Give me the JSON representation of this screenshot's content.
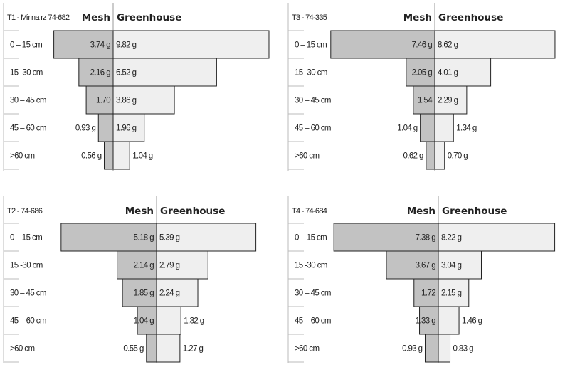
{
  "colors": {
    "mesh": "#c2c2c2",
    "greenhouse": "#efefef",
    "outline": "#222222"
  },
  "chart_data": [
    {
      "type": "bar",
      "orientation": "horizontal-butterfly",
      "title": "T1 - Mirina rz 74-682",
      "categories": [
        "0 – 15 cm",
        "15 -30 cm",
        "30 – 45 cm",
        "45 – 60 cm",
        ">60 cm"
      ],
      "series": [
        {
          "name": "Mesh",
          "values": [
            3.74,
            2.16,
            1.7,
            0.93,
            0.56
          ],
          "labels": [
            "3.74 g",
            "2.16 g",
            "1.70",
            "0.93 g",
            "0.56  g"
          ]
        },
        {
          "name": "Greenhouse",
          "values": [
            9.82,
            6.52,
            3.86,
            1.96,
            1.04
          ],
          "labels": [
            "9.82 g",
            "6.52 g",
            "3.86 g",
            "1.96 g",
            "1.04 g"
          ]
        }
      ]
    },
    {
      "type": "bar",
      "orientation": "horizontal-butterfly",
      "title": "T3 - 74-335",
      "categories": [
        "0 – 15 cm",
        "15 -30 cm",
        "30 – 45 cm",
        "45 – 60 cm",
        ">60 cm"
      ],
      "series": [
        {
          "name": "Mesh",
          "values": [
            7.46,
            2.05,
            1.54,
            1.04,
            0.62
          ],
          "labels": [
            "7.46 g",
            "2.05 g",
            "1.54",
            "1.04 g",
            "0.62 g"
          ]
        },
        {
          "name": "Greenhouse",
          "values": [
            8.62,
            4.01,
            2.29,
            1.34,
            0.7
          ],
          "labels": [
            "8.62 g",
            "4.01 g",
            "2.29 g",
            "1.34 g",
            "0.70 g"
          ]
        }
      ]
    },
    {
      "type": "bar",
      "orientation": "horizontal-butterfly",
      "title": "T2 - 74-686",
      "categories": [
        "0 – 15 cm",
        "15 -30 cm",
        "30 – 45 cm",
        "45 – 60 cm",
        ">60 cm"
      ],
      "series": [
        {
          "name": "Mesh",
          "values": [
            5.18,
            2.14,
            1.85,
            1.04,
            0.55
          ],
          "labels": [
            "5.18 g",
            "2.14 g",
            "1.85 g",
            "1.04 g",
            "0.55 g"
          ]
        },
        {
          "name": "Greenhouse",
          "values": [
            5.39,
            2.79,
            2.24,
            1.32,
            1.27
          ],
          "labels": [
            "5.39 g",
            "2.79 g",
            "2.24 g",
            "1.32 g",
            "1.27 g"
          ]
        }
      ]
    },
    {
      "type": "bar",
      "orientation": "horizontal-butterfly",
      "title": "T4 - 74-684",
      "categories": [
        "0 – 15 cm",
        "15 -30 cm",
        "30 – 45 cm",
        "45 – 60 cm",
        ">60 cm"
      ],
      "series": [
        {
          "name": "Mesh",
          "values": [
            7.38,
            3.67,
            1.72,
            1.33,
            0.93
          ],
          "labels": [
            "7.38 g",
            "3.67 g",
            "1.72",
            "1.33 g",
            "0.93 g"
          ]
        },
        {
          "name": "Greenhouse",
          "values": [
            8.22,
            3.04,
            2.15,
            1.46,
            0.83
          ],
          "labels": [
            "8.22 g",
            "3.04 g",
            "2.15 g",
            "1.46 g",
            "0.83 g"
          ]
        }
      ]
    }
  ]
}
